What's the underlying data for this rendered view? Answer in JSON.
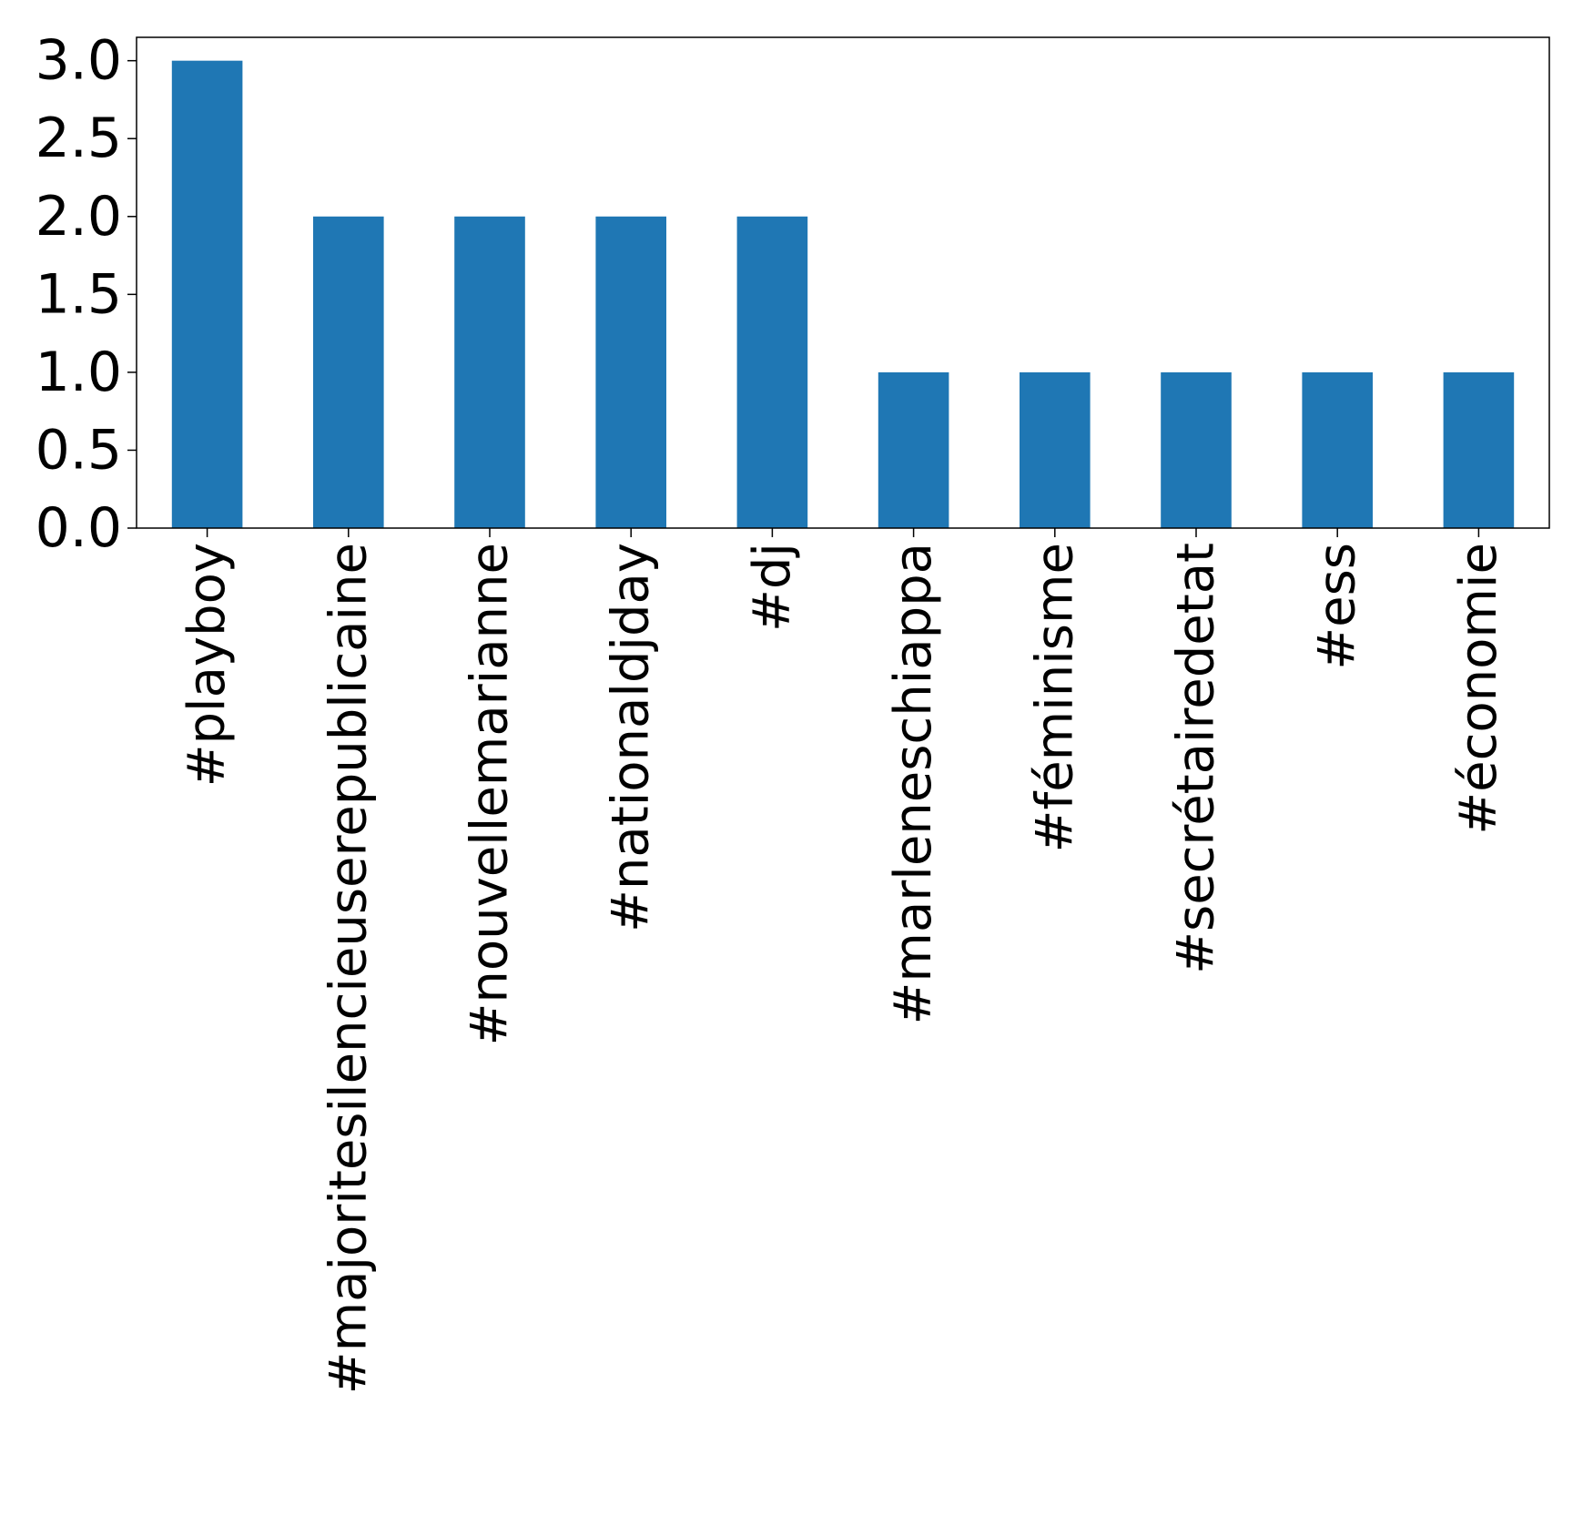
{
  "chart_data": {
    "type": "bar",
    "title": "",
    "xlabel": "",
    "ylabel": "",
    "categories": [
      "#playboy",
      "#majoritesilencieuserepublicaine",
      "#nouvellemarianne",
      "#nationaldjday",
      "#dj",
      "#marleneschiappa",
      "#féminisme",
      "#secrétairedetat",
      "#ess",
      "#économie"
    ],
    "values": [
      3,
      2,
      2,
      2,
      2,
      1,
      1,
      1,
      1,
      1
    ],
    "ylim": [
      0,
      3.15
    ],
    "yticks": [
      "0.0",
      "0.5",
      "1.0",
      "1.5",
      "2.0",
      "2.5",
      "3.0"
    ],
    "grid": false,
    "legend": "none",
    "bar_color": "#1f77b4"
  }
}
